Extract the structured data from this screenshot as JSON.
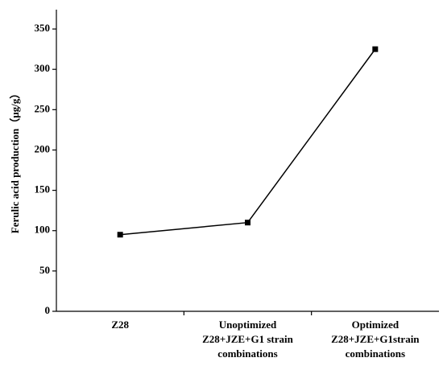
{
  "chart_data": {
    "type": "line",
    "y_label": "Ferulic acid production（μg/g）",
    "categories": [
      "Z28",
      "Unoptimized\nZ28+JZE+G1 strain\ncombinations",
      "Optimized\nZ28+JZE+G1strain\ncombinations"
    ],
    "values": [
      95,
      110,
      325
    ],
    "color": "#000000",
    "ylim": [
      0,
      374
    ],
    "yticks": [
      0,
      50,
      100,
      150,
      200,
      250,
      300,
      350
    ]
  }
}
